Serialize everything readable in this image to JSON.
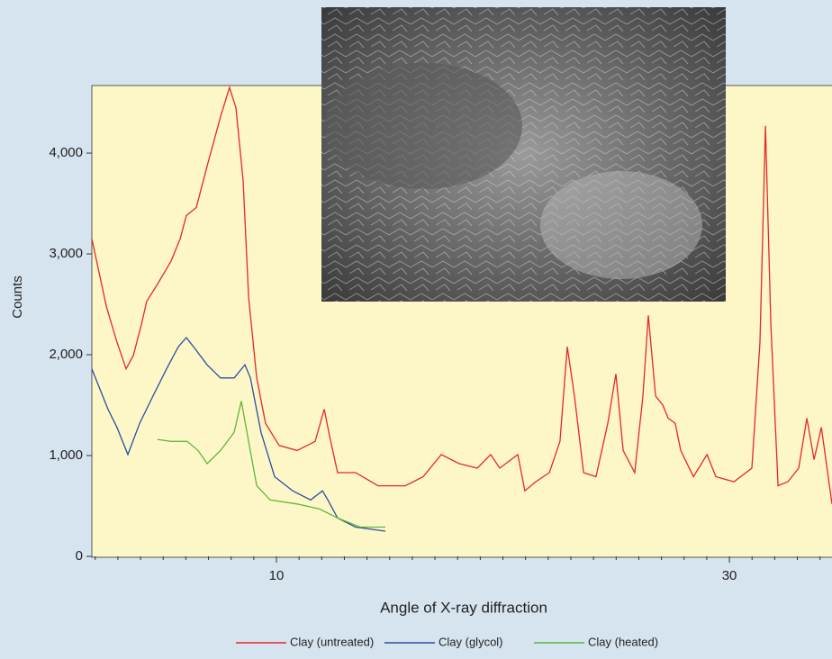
{
  "chart_data": {
    "type": "line",
    "xlabel": "Angle of X-ray diffraction",
    "ylabel": "Counts",
    "xlim": [
      1.85,
      34.53
    ],
    "ylim": [
      0,
      4670
    ],
    "xticks": [
      10,
      30
    ],
    "xminorticks": [
      2,
      3,
      4,
      5,
      6,
      7,
      8,
      9,
      11,
      12,
      13,
      14,
      15,
      16,
      17,
      18,
      19,
      20,
      21,
      22,
      23,
      24,
      25,
      26,
      27,
      28,
      29,
      31,
      32,
      33,
      34
    ],
    "yticks": [
      0,
      {
        "value": 1000,
        "label": "1,000"
      },
      {
        "value": 2000,
        "label": "2,000"
      },
      {
        "value": 3000,
        "label": "3,000"
      },
      {
        "value": 4000,
        "label": "4,000"
      }
    ],
    "legend": "bottom",
    "series": [
      {
        "name": "Clay (untreated)",
        "color": "#e8262b",
        "x": [
          1.85,
          2.49,
          2.96,
          3.36,
          3.68,
          4.04,
          4.27,
          4.75,
          5.35,
          5.75,
          6.02,
          6.46,
          6.94,
          7.53,
          7.93,
          8.21,
          8.53,
          8.77,
          9.13,
          9.52,
          10.12,
          10.91,
          11.71,
          12.11,
          12.35,
          12.7,
          13.5,
          14.49,
          15.69,
          16.48,
          17.28,
          18.07,
          18.87,
          19.46,
          19.86,
          20.66,
          20.97,
          21.45,
          22.05,
          22.52,
          22.84,
          23.16,
          23.56,
          24.11,
          24.63,
          24.99,
          25.31,
          25.82,
          26.18,
          26.42,
          26.74,
          27.06,
          27.3,
          27.61,
          27.85,
          28.41,
          29.01,
          29.4,
          30.2,
          30.99,
          31.35,
          31.59,
          31.83,
          32.15,
          32.58,
          33.06,
          33.42,
          33.74,
          34.06,
          34.53
        ],
        "values": [
          3150,
          2480,
          2125,
          1860,
          1990,
          2300,
          2530,
          2700,
          2930,
          3150,
          3380,
          3460,
          3870,
          4360,
          4650,
          4450,
          3730,
          2570,
          1770,
          1320,
          1100,
          1050,
          1140,
          1460,
          1190,
          830,
          830,
          700,
          700,
          790,
          1010,
          920,
          875,
          1010,
          875,
          1010,
          650,
          740,
          830,
          1140,
          2080,
          1590,
          830,
          790,
          1320,
          1810,
          1050,
          830,
          1590,
          2390,
          1590,
          1500,
          1370,
          1320,
          1050,
          790,
          1010,
          790,
          740,
          875,
          2125,
          4270,
          2300,
          700,
          740,
          875,
          1370,
          960,
          1280,
          520
        ]
      },
      {
        "name": "Clay (glycol)",
        "color": "#2a4fa0",
        "x": [
          1.85,
          2.56,
          2.96,
          3.44,
          3.96,
          4.55,
          5.15,
          5.67,
          6.02,
          6.34,
          6.94,
          7.53,
          8.13,
          8.61,
          8.85,
          9.32,
          9.92,
          10.72,
          11.51,
          12.03,
          12.27,
          12.7,
          13.5,
          14.81
        ],
        "values": [
          1860,
          1460,
          1280,
          1010,
          1320,
          1590,
          1860,
          2080,
          2170,
          2080,
          1900,
          1770,
          1770,
          1900,
          1770,
          1230,
          790,
          650,
          560,
          650,
          560,
          380,
          290,
          250
        ]
      },
      {
        "name": "Clay (heated)",
        "color": "#5cb83a",
        "x": [
          4.75,
          5.35,
          6.06,
          6.54,
          6.94,
          7.53,
          8.13,
          8.45,
          8.73,
          9.13,
          9.72,
          10.91,
          11.91,
          12.7,
          13.7,
          14.81
        ],
        "values": [
          1160,
          1140,
          1140,
          1050,
          920,
          1050,
          1230,
          1540,
          1190,
          700,
          560,
          520,
          470,
          380,
          290,
          290
        ]
      }
    ]
  }
}
